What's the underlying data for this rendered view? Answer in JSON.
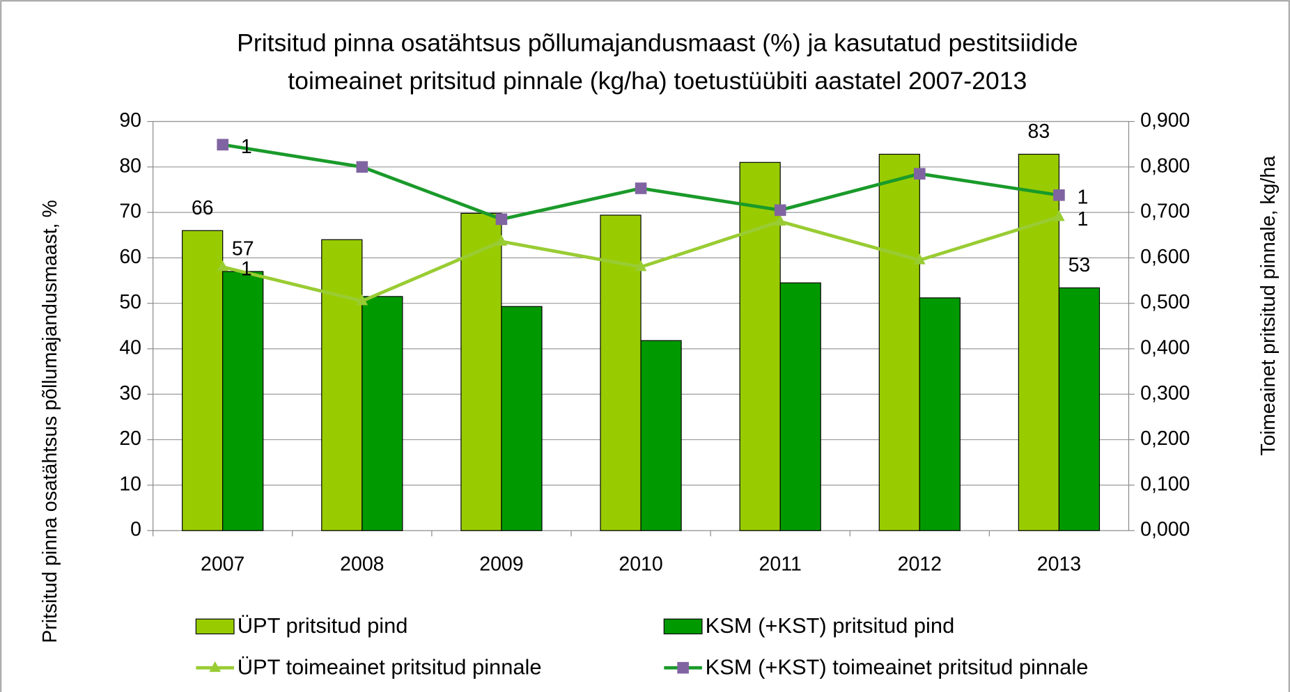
{
  "chart_data": {
    "type": "bar",
    "title": [
      "Pritsitud pinna osatähtsus põllumajandusmaast (%) ja kasutatud pestitsiidide",
      "toimeainet pritsitud pinnale (kg/ha) toetustüübiti aastatel 2007-2013"
    ],
    "y_label": "Pritsitud pinna osatähtsus põllumajandusmaast, %",
    "y2_label": "Toimeainet  pritsitud pinnale, kg/ha",
    "categories": [
      "2007",
      "2008",
      "2009",
      "2010",
      "2011",
      "2012",
      "2013"
    ],
    "series": [
      {
        "name": "ÜPT pritsitud pind",
        "type": "bar",
        "color": "#99cc00",
        "values": [
          66,
          64,
          69.8,
          69.4,
          81,
          82.8,
          82.8
        ],
        "value_labels": [
          "66",
          null,
          null,
          null,
          null,
          null,
          "83"
        ]
      },
      {
        "name": "KSM (+KST) pritsitud pind",
        "type": "bar",
        "color": "#009900",
        "values": [
          57,
          51.5,
          49.3,
          41.8,
          54.5,
          51.2,
          53.4
        ],
        "value_labels": [
          "57",
          null,
          null,
          null,
          null,
          null,
          "53"
        ]
      },
      {
        "name": "ÜPT toimeainet pritsitud pinnale",
        "type": "line",
        "axis": "y2",
        "color": "#99cc33",
        "marker": "triangle",
        "marker_color": "#99cc33",
        "values": [
          0.58,
          0.505,
          0.636,
          0.58,
          0.68,
          0.595,
          0.69
        ],
        "value_labels": [
          "1",
          null,
          null,
          null,
          null,
          null,
          "1"
        ]
      },
      {
        "name": "KSM (+KST) toimeainet pritsitud pinnale",
        "type": "line",
        "axis": "y2",
        "color": "#1a9a2a",
        "marker": "square",
        "marker_color": "#8064a2",
        "values": [
          0.849,
          0.8,
          0.685,
          0.753,
          0.705,
          0.785,
          0.738
        ],
        "value_labels": [
          "1",
          null,
          null,
          null,
          null,
          null,
          "1"
        ]
      }
    ],
    "ylim": [
      0,
      90
    ],
    "yticks": [
      0,
      10,
      20,
      30,
      40,
      50,
      60,
      70,
      80,
      90
    ],
    "y2lim": [
      0,
      0.9
    ],
    "y2ticks": [
      {
        "value": 0,
        "label": "0,000"
      },
      {
        "value": 0.1,
        "label": "0,100"
      },
      {
        "value": 0.2,
        "label": "0,200"
      },
      {
        "value": 0.3,
        "label": "0,300"
      },
      {
        "value": 0.4,
        "label": "0,400"
      },
      {
        "value": 0.5,
        "label": "0,500"
      },
      {
        "value": 0.6,
        "label": "0,600"
      },
      {
        "value": 0.7,
        "label": "0,700"
      },
      {
        "value": 0.8,
        "label": "0,800"
      },
      {
        "value": 0.9,
        "label": "0,900"
      }
    ],
    "grid": true,
    "legend": "bottom"
  }
}
